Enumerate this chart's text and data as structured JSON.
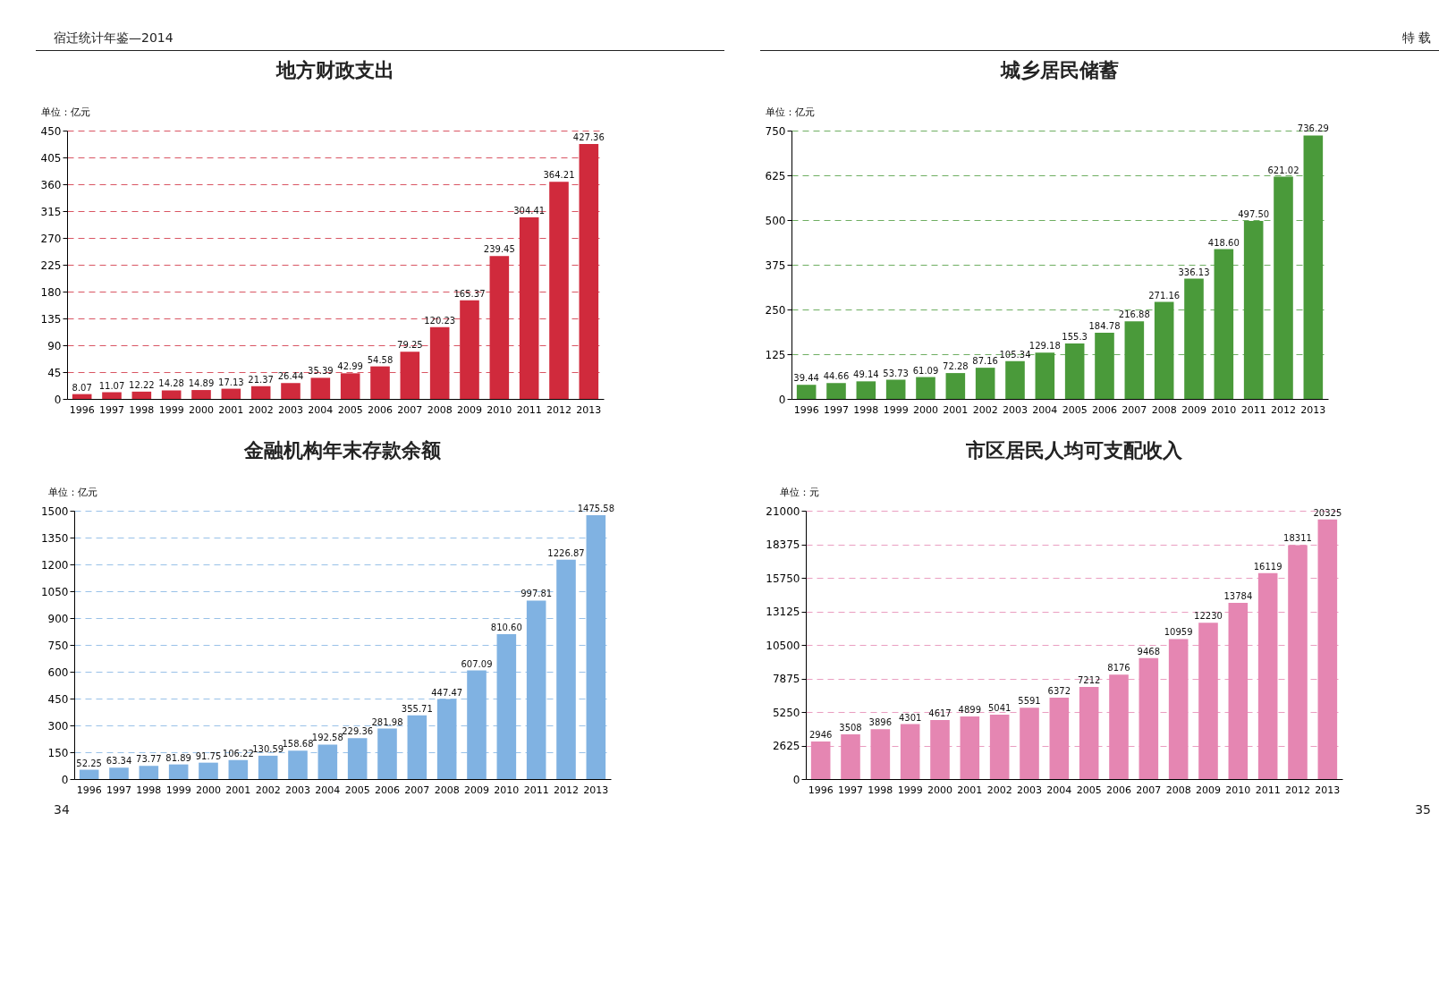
{
  "chart_data": [
    {
      "type": "bar",
      "title": "地方财政支出",
      "ylabel": "单位：亿元",
      "annotations": [
        "宿迁统计年鉴—2014"
      ],
      "categories": [
        "1996",
        "1997",
        "1998",
        "1999",
        "2000",
        "2001",
        "2002",
        "2003",
        "2004",
        "2005",
        "2006",
        "2007",
        "2008",
        "2009",
        "2010",
        "2011",
        "2012",
        "2013"
      ],
      "values": [
        8.07,
        11.07,
        12.22,
        14.28,
        14.89,
        17.13,
        21.37,
        26.44,
        35.39,
        42.99,
        54.58,
        79.25,
        120.23,
        165.37,
        239.45,
        304.41,
        364.21,
        427.36
      ],
      "color": "#d02a3c",
      "ylim": [
        0,
        450
      ],
      "yticks": [
        0,
        45,
        90,
        135,
        180,
        225,
        270,
        315,
        360,
        405,
        450
      ],
      "grid": "y",
      "data_labels": true
    },
    {
      "type": "bar",
      "title": "城乡居民储蓄",
      "ylabel": "单位：亿元",
      "annotations": [
        "特 载"
      ],
      "categories": [
        "1996",
        "1997",
        "1998",
        "1999",
        "2000",
        "2001",
        "2002",
        "2003",
        "2004",
        "2005",
        "2006",
        "2007",
        "2008",
        "2009",
        "2010",
        "2011",
        "2012",
        "2013"
      ],
      "values": [
        39.44,
        44.66,
        49.14,
        53.73,
        61.09,
        72.28,
        87.16,
        105.34,
        129.18,
        155.3,
        184.78,
        216.88,
        271.16,
        336.13,
        418.6,
        497.5,
        621.02,
        736.29
      ],
      "value_labels": [
        "39.44",
        "44.66",
        "49.14",
        "53.73",
        "61.09",
        "72.28",
        "87.16",
        "105.34",
        "129.18",
        "155.3",
        "184.78",
        "216.88",
        "271.16",
        "336.13",
        "418.60",
        "497.50",
        "621.02",
        "736.29"
      ],
      "color": "#4a9a3a",
      "ylim": [
        0,
        750
      ],
      "yticks": [
        0,
        125,
        250,
        375,
        500,
        625,
        750
      ],
      "grid": "y"
    },
    {
      "type": "bar",
      "title": "金融机构年末存款余额",
      "ylabel": "单位：亿元",
      "annotations": [
        "34"
      ],
      "categories": [
        "1996",
        "1997",
        "1998",
        "1999",
        "2000",
        "2001",
        "2002",
        "2003",
        "2004",
        "2005",
        "2006",
        "2007",
        "2008",
        "2009",
        "2010",
        "2011",
        "2012",
        "2013"
      ],
      "values": [
        52.25,
        63.34,
        73.77,
        81.89,
        91.75,
        106.22,
        130.59,
        158.68,
        192.58,
        229.36,
        281.98,
        355.71,
        447.47,
        607.09,
        810.6,
        997.81,
        1226.87,
        1475.58
      ],
      "value_labels": [
        "52.25",
        "63.34",
        "73.77",
        "81.89",
        "91.75",
        "106.22",
        "130.59",
        "158.68",
        "192.58",
        "229.36",
        "281.98",
        "355.71",
        "447.47",
        "607.09",
        "810.60",
        "997.81",
        "1226.87",
        "1475.58"
      ],
      "color": "#80b2e2",
      "ylim": [
        0,
        1500
      ],
      "yticks": [
        0,
        150,
        300,
        450,
        600,
        750,
        900,
        1050,
        1200,
        1350,
        1500
      ],
      "grid": "y"
    },
    {
      "type": "bar",
      "title": "市区居民人均可支配收入",
      "ylabel": "单位：元",
      "annotations": [
        "35"
      ],
      "categories": [
        "1996",
        "1997",
        "1998",
        "1999",
        "2000",
        "2001",
        "2002",
        "2003",
        "2004",
        "2005",
        "2006",
        "2007",
        "2008",
        "2009",
        "2010",
        "2011",
        "2012",
        "2013"
      ],
      "values": [
        2946,
        3508,
        3896,
        4301,
        4617,
        4899,
        5041,
        5591,
        6372,
        7212,
        8176,
        9468,
        10959,
        12230,
        13784,
        16119,
        18311,
        20325
      ],
      "color": "#e586b2",
      "ylim": [
        0,
        21000
      ],
      "yticks": [
        0,
        2625,
        5250,
        7875,
        10500,
        13125,
        15750,
        18375,
        21000
      ],
      "grid": "y",
      "data_labels": true
    }
  ]
}
